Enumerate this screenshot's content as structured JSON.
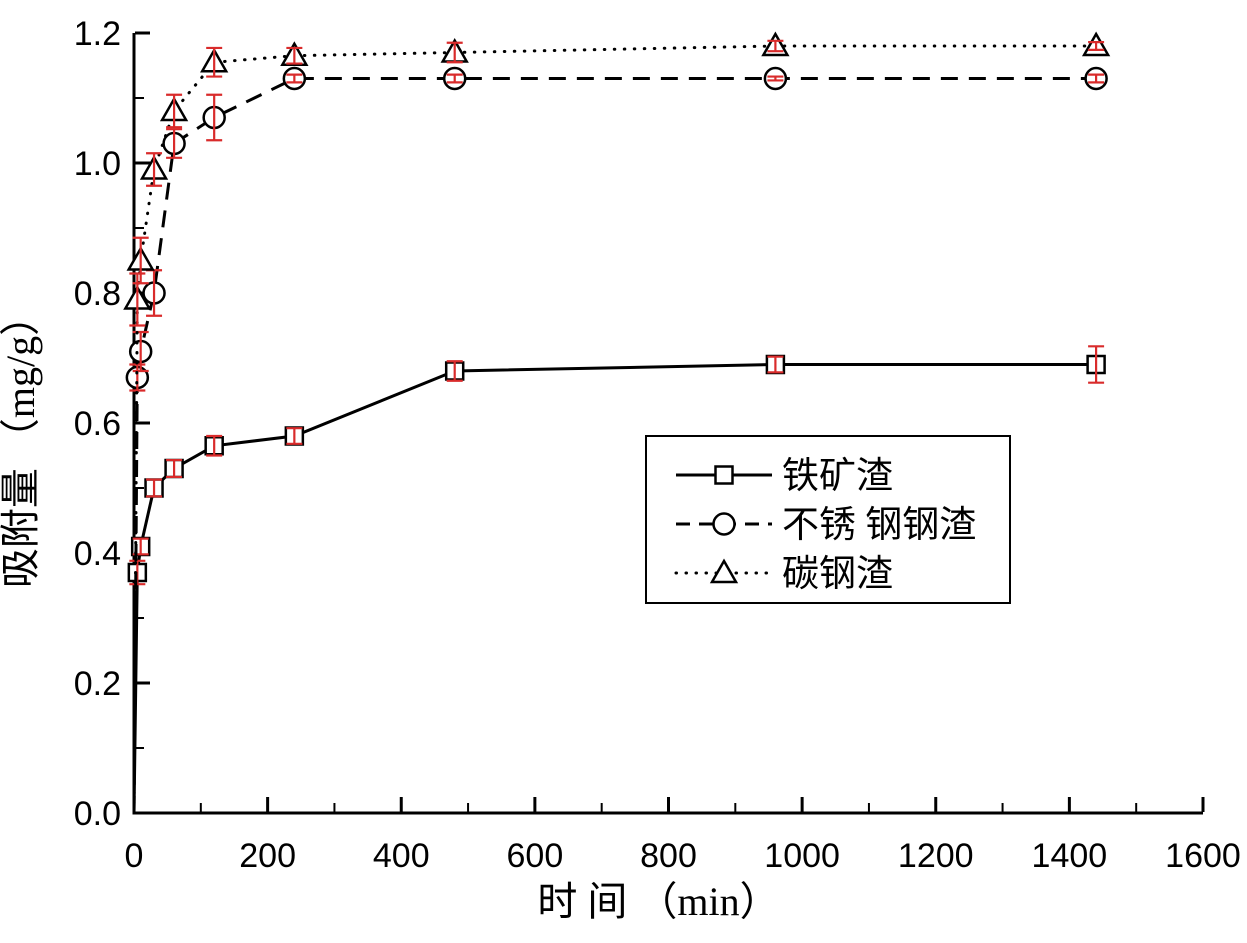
{
  "figure": {
    "background": "#ffffff"
  },
  "chart_data": {
    "type": "line",
    "title": "",
    "xlabel": "时 间 （min）",
    "ylabel": "吸附量 （mg/g）",
    "xlim": [
      0,
      1600
    ],
    "ylim": [
      0,
      1.2
    ],
    "x_major_tick_step": 200,
    "x_minor_tick_step": 100,
    "y_major_tick_step": 0.2,
    "y_minor_tick_step": 0.1,
    "x_tick_labels": [
      "0",
      "200",
      "400",
      "600",
      "800",
      "1000",
      "1200",
      "1400",
      "1600"
    ],
    "y_tick_labels": [
      "0.0",
      "0.2",
      "0.4",
      "0.6",
      "0.8",
      "1.0",
      "1.2"
    ],
    "grid": false,
    "frame": "left-bottom-axes-only",
    "ticks_direction": "in",
    "error_bars": true,
    "legend_position": "inside-right-middle",
    "colors": {
      "line": "#000000",
      "marker_fill": "#ffffff",
      "error_bar": "#d92b2b",
      "text": "#000000",
      "background": "#ffffff"
    },
    "series": [
      {
        "key": "iron-ore-slag",
        "name": "铁矿渣",
        "marker": "square",
        "line_style": "solid",
        "x": [
          0,
          5,
          10,
          30,
          60,
          120,
          240,
          480,
          960,
          1440
        ],
        "y": [
          0,
          0.37,
          0.41,
          0.5,
          0.53,
          0.565,
          0.58,
          0.68,
          0.69,
          0.69
        ],
        "yerr": [
          0,
          0.018,
          0.012,
          0.013,
          0.013,
          0.015,
          0.012,
          0.015,
          0.012,
          0.028
        ]
      },
      {
        "key": "stainless-steel-slag",
        "name": "不锈 钢钢渣",
        "marker": "circle",
        "line_style": "dashed",
        "x": [
          0,
          5,
          10,
          30,
          60,
          120,
          240,
          480,
          960,
          1440
        ],
        "y": [
          0,
          0.67,
          0.71,
          0.8,
          1.03,
          1.07,
          1.13,
          1.13,
          1.13,
          1.13
        ],
        "yerr": [
          0,
          0.02,
          0.03,
          0.035,
          0.022,
          0.035,
          0.006,
          0.006,
          0.003,
          0.006
        ]
      },
      {
        "key": "carbon-steel-slag",
        "name": "碳钢渣",
        "marker": "triangle",
        "line_style": "dotted",
        "x": [
          0,
          5,
          10,
          30,
          60,
          120,
          240,
          480,
          960,
          1440
        ],
        "y": [
          0,
          0.79,
          0.85,
          0.99,
          1.08,
          1.155,
          1.165,
          1.17,
          1.18,
          1.18
        ],
        "yerr": [
          0,
          0.04,
          0.035,
          0.025,
          0.025,
          0.022,
          0.012,
          0.015,
          0.008,
          0.006
        ]
      }
    ]
  }
}
